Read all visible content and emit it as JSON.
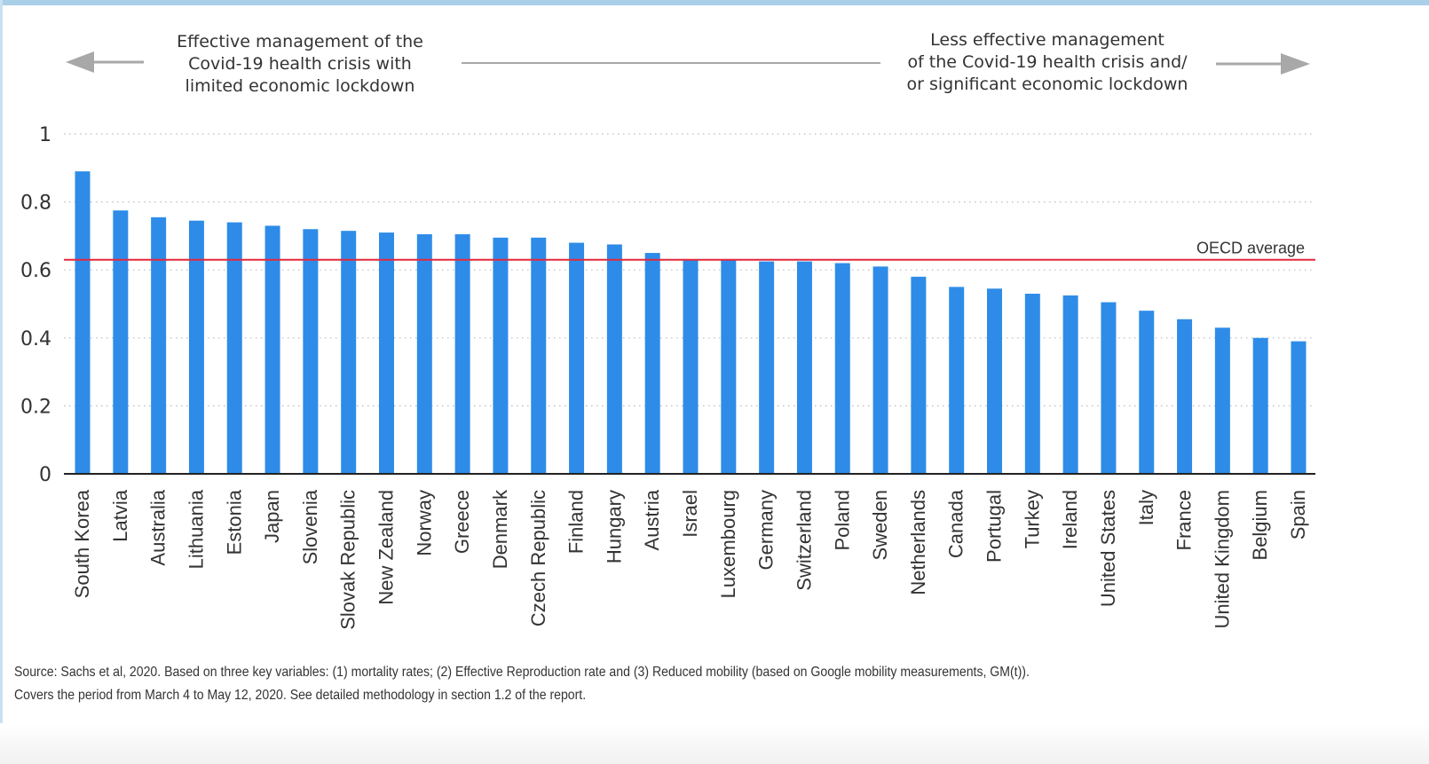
{
  "header": {
    "left_text": "Effective management of the\nCovid-19 health crisis with\nlimited economic lockdown",
    "right_text": "Less effective management\nof the Covid-19 health crisis and/\nor significant economic lockdown"
  },
  "source": {
    "line1": "Source: Sachs et al, 2020. Based on three key variables: (1) mortality rates; (2) Effective Reproduction rate and (3) Reduced mobility (based on Google mobility measurements, GM(t)).",
    "line2": "Covers the period from March 4 to May 12, 2020. See detailed methodology in section 1.2 of the report."
  },
  "colors": {
    "bar": "#2e8ce8",
    "reference_line": "#e3283c",
    "axis": "#222222",
    "grid": "#bbbbbb",
    "arrow": "#a8a8a8",
    "text": "#333333"
  },
  "chart_data": {
    "type": "bar",
    "title": "",
    "xlabel": "",
    "ylabel": "",
    "ylim": [
      0,
      1
    ],
    "yticks": [
      0,
      0.2,
      0.4,
      0.6,
      0.8,
      1
    ],
    "ytick_labels": [
      "0",
      "0.2",
      "0.4",
      "0.6",
      "0.8",
      "1"
    ],
    "grid": "horizontal dotted",
    "categories": [
      "South Korea",
      "Latvia",
      "Australia",
      "Lithuania",
      "Estonia",
      "Japan",
      "Slovenia",
      "Slovak Republic",
      "New Zealand",
      "Norway",
      "Greece",
      "Denmark",
      "Czech Republic",
      "Finland",
      "Hungary",
      "Austria",
      "Israel",
      "Luxembourg",
      "Germany",
      "Switzerland",
      "Poland",
      "Sweden",
      "Netherlands",
      "Canada",
      "Portugal",
      "Turkey",
      "Ireland",
      "United States",
      "Italy",
      "France",
      "United Kingdom",
      "Belgium",
      "Spain"
    ],
    "values": [
      0.89,
      0.775,
      0.755,
      0.745,
      0.74,
      0.73,
      0.72,
      0.715,
      0.71,
      0.705,
      0.705,
      0.695,
      0.695,
      0.68,
      0.675,
      0.65,
      0.63,
      0.63,
      0.625,
      0.625,
      0.62,
      0.61,
      0.58,
      0.55,
      0.545,
      0.53,
      0.525,
      0.505,
      0.48,
      0.455,
      0.43,
      0.4,
      0.39
    ],
    "reference_line": {
      "value": 0.63,
      "label": "OECD average"
    }
  }
}
